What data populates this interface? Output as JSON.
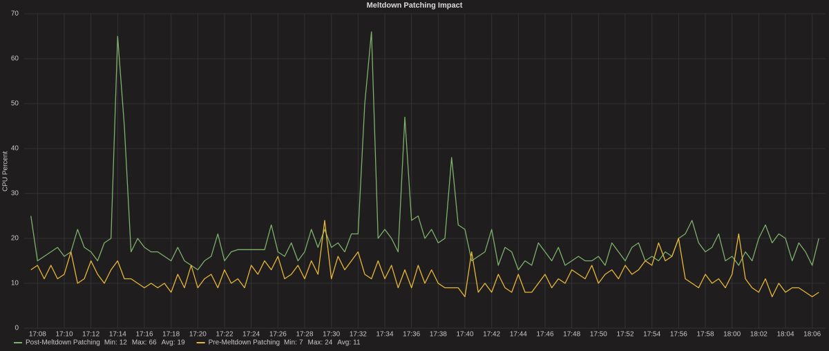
{
  "chart_data": {
    "type": "line",
    "title": "Meltdown Patching Impact",
    "y_label": "CPU Percent",
    "grid": true,
    "legend": "bottom-left",
    "legend_stat_labels": [
      "Min:",
      "Max:",
      "Avg:"
    ],
    "xlim": [
      1027,
      1087
    ],
    "ylim": [
      0,
      70
    ],
    "yticks": [
      0,
      10,
      20,
      30,
      40,
      50,
      60,
      70
    ],
    "xticks": [
      {
        "value": 1028,
        "label": "17:08"
      },
      {
        "value": 1030,
        "label": "17:10"
      },
      {
        "value": 1032,
        "label": "17:12"
      },
      {
        "value": 1034,
        "label": "17:14"
      },
      {
        "value": 1036,
        "label": "17:16"
      },
      {
        "value": 1038,
        "label": "17:18"
      },
      {
        "value": 1040,
        "label": "17:20"
      },
      {
        "value": 1042,
        "label": "17:22"
      },
      {
        "value": 1044,
        "label": "17:24"
      },
      {
        "value": 1046,
        "label": "17:26"
      },
      {
        "value": 1048,
        "label": "17:28"
      },
      {
        "value": 1050,
        "label": "17:30"
      },
      {
        "value": 1052,
        "label": "17:32"
      },
      {
        "value": 1054,
        "label": "17:34"
      },
      {
        "value": 1056,
        "label": "17:36"
      },
      {
        "value": 1058,
        "label": "17:38"
      },
      {
        "value": 1060,
        "label": "17:40"
      },
      {
        "value": 1062,
        "label": "17:42"
      },
      {
        "value": 1064,
        "label": "17:44"
      },
      {
        "value": 1066,
        "label": "17:46"
      },
      {
        "value": 1068,
        "label": "17:48"
      },
      {
        "value": 1070,
        "label": "17:50"
      },
      {
        "value": 1072,
        "label": "17:52"
      },
      {
        "value": 1074,
        "label": "17:54"
      },
      {
        "value": 1076,
        "label": "17:56"
      },
      {
        "value": 1078,
        "label": "17:58"
      },
      {
        "value": 1080,
        "label": "18:00"
      },
      {
        "value": 1082,
        "label": "18:02"
      },
      {
        "value": 1084,
        "label": "18:04"
      },
      {
        "value": 1086,
        "label": "18:06"
      }
    ],
    "x": [
      1027.5,
      1028,
      1028.5,
      1029,
      1029.5,
      1030,
      1030.5,
      1031,
      1031.5,
      1032,
      1032.5,
      1033,
      1033.5,
      1034,
      1034.5,
      1035,
      1035.5,
      1036,
      1036.5,
      1037,
      1037.5,
      1038,
      1038.5,
      1039,
      1039.5,
      1040,
      1040.5,
      1041,
      1041.5,
      1042,
      1042.5,
      1043,
      1043.5,
      1044,
      1044.5,
      1045,
      1045.5,
      1046,
      1046.5,
      1047,
      1047.5,
      1048,
      1048.5,
      1049,
      1049.5,
      1050,
      1050.5,
      1051,
      1051.5,
      1052,
      1052.5,
      1053,
      1053.5,
      1054,
      1054.5,
      1055,
      1055.5,
      1056,
      1056.5,
      1057,
      1057.5,
      1058,
      1058.5,
      1059,
      1059.5,
      1060,
      1060.5,
      1061,
      1061.5,
      1062,
      1062.5,
      1063,
      1063.5,
      1064,
      1064.5,
      1065,
      1065.5,
      1066,
      1066.5,
      1067,
      1067.5,
      1068,
      1068.5,
      1069,
      1069.5,
      1070,
      1070.5,
      1071,
      1071.5,
      1072,
      1072.5,
      1073,
      1073.5,
      1074,
      1074.5,
      1075,
      1075.5,
      1076,
      1076.5,
      1077,
      1077.5,
      1078,
      1078.5,
      1079,
      1079.5,
      1080,
      1080.5,
      1081,
      1081.5,
      1082,
      1082.5,
      1083,
      1083.5,
      1084,
      1084.5,
      1085,
      1085.5,
      1086,
      1086.5
    ],
    "series": [
      {
        "name": "Post-Meltdown Patching",
        "color": "#7eb26d",
        "min": 12,
        "max": 66,
        "avg": 19,
        "values": [
          25,
          15,
          16,
          17,
          18,
          16,
          17,
          22,
          18,
          17,
          15,
          19,
          20,
          65,
          45,
          17,
          20,
          18,
          17,
          17,
          16,
          15,
          18,
          15,
          14,
          13,
          15,
          16,
          21,
          15,
          17,
          17.5,
          17.5,
          17.5,
          17.5,
          17.5,
          23,
          17,
          16,
          19,
          15,
          17,
          22,
          18,
          22,
          18,
          19,
          17,
          21,
          21,
          50,
          66,
          20,
          22,
          20,
          17,
          47,
          24,
          25,
          20,
          22,
          19,
          20,
          38,
          23,
          22,
          15,
          16,
          17,
          22,
          14,
          18,
          17,
          13,
          15,
          14,
          19,
          17,
          15,
          18,
          14,
          15,
          16,
          15,
          15,
          16,
          14,
          19,
          17,
          15,
          18,
          19,
          15,
          16,
          15,
          17,
          16,
          20,
          21,
          24,
          19,
          17,
          18,
          21,
          15,
          16,
          14,
          17,
          15,
          20,
          23,
          19,
          21,
          20,
          15,
          19,
          17,
          14,
          20
        ]
      },
      {
        "name": "Pre-Meltdown Patching",
        "color": "#eab839",
        "min": 7,
        "max": 24,
        "avg": 11,
        "values": [
          13,
          14,
          11,
          14,
          11,
          12,
          17,
          10,
          11,
          15,
          12,
          10,
          13,
          15,
          11,
          11,
          10,
          9,
          10,
          9,
          10,
          8,
          12,
          9,
          14,
          9,
          11,
          12,
          9,
          13,
          10,
          11,
          9,
          14,
          12,
          15,
          13,
          16,
          11,
          12,
          14,
          11,
          15,
          12,
          24,
          11,
          16,
          13,
          15,
          17,
          12,
          11,
          15,
          11,
          14,
          9,
          13,
          9,
          14,
          10,
          13,
          10,
          9,
          9,
          9,
          7,
          17,
          8,
          10,
          8,
          12,
          9,
          8,
          12,
          8,
          8,
          10,
          12,
          9,
          11,
          10,
          13,
          12,
          11,
          14,
          10,
          12,
          13,
          11,
          14,
          12,
          13,
          15,
          14,
          19,
          15,
          16,
          20,
          11,
          10,
          9,
          12,
          10,
          11,
          9,
          12,
          21,
          11,
          9,
          8,
          11,
          7,
          10,
          8,
          9,
          9,
          8,
          7,
          8
        ]
      }
    ]
  }
}
